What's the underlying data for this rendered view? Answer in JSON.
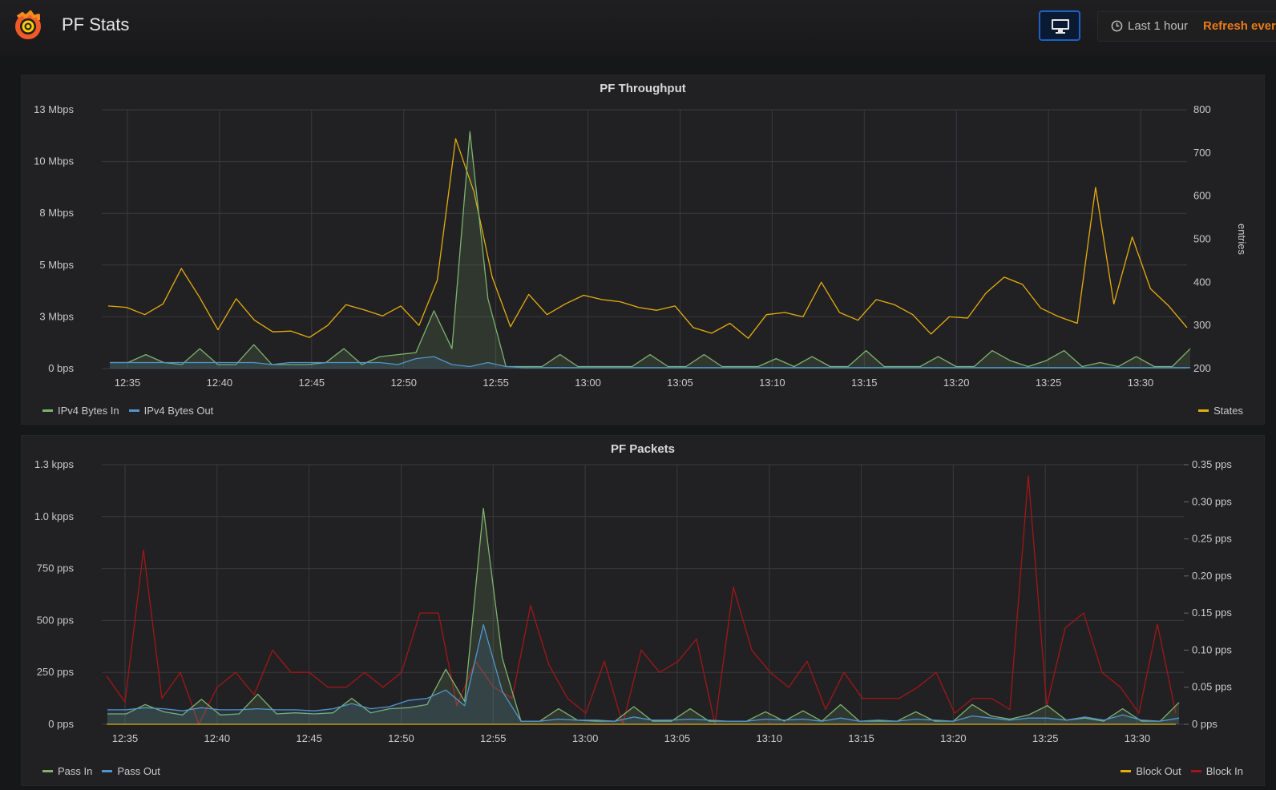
{
  "header": {
    "title": "PF Stats",
    "time_range": "Last 1 hour",
    "refresh_label": "Refresh ever"
  },
  "colors": {
    "green": "#7eb26d",
    "blue": "#5195ce",
    "yellow": "#e5ac0e",
    "red": "#a21616",
    "accent": "#eb7b18"
  },
  "chart_data": [
    {
      "type": "line",
      "title": "PF Throughput",
      "x_ticks": [
        "12:35",
        "12:40",
        "12:45",
        "12:50",
        "12:55",
        "13:00",
        "13:05",
        "13:10",
        "13:15",
        "13:20",
        "13:25",
        "13:30"
      ],
      "y_left": {
        "ticks": [
          "0 bps",
          "3 Mbps",
          "5 Mbps",
          "8 Mbps",
          "10 Mbps",
          "13 Mbps"
        ],
        "range": [
          0,
          13
        ]
      },
      "y_right": {
        "ticks": [
          "200",
          "300",
          "400",
          "500",
          "600",
          "700",
          "800"
        ],
        "range": [
          200,
          800
        ],
        "label": "entries"
      },
      "grid": true,
      "legend_left": [
        {
          "name": "IPv4 Bytes In",
          "color": "#7eb26d"
        },
        {
          "name": "IPv4 Bytes Out",
          "color": "#5195ce"
        }
      ],
      "legend_right": [
        {
          "name": "States",
          "color": "#e5ac0e"
        }
      ],
      "series": [
        {
          "name": "States",
          "axis": "right",
          "color": "#e5ac0e",
          "values": [
            345,
            342,
            325,
            350,
            432,
            365,
            290,
            362,
            312,
            285,
            287,
            272,
            300,
            348,
            336,
            322,
            345,
            300,
            405,
            733,
            610,
            412,
            297,
            372,
            325,
            350,
            370,
            360,
            355,
            342,
            335,
            345,
            295,
            282,
            305,
            270,
            325,
            330,
            320,
            400,
            330,
            312,
            360,
            348,
            325,
            280,
            320,
            317,
            375,
            412,
            395,
            340,
            320,
            305,
            620,
            350,
            505,
            385,
            345,
            295
          ]
        },
        {
          "name": "IPv4 Bytes In",
          "axis": "left",
          "color": "#7eb26d",
          "values": [
            0.3,
            0.3,
            0.7,
            0.3,
            0.2,
            1.0,
            0.2,
            0.2,
            1.2,
            0.2,
            0.2,
            0.2,
            0.3,
            1.0,
            0.2,
            0.6,
            0.7,
            0.8,
            2.9,
            1.0,
            11.9,
            3.5,
            0.1,
            0.1,
            0.1,
            0.7,
            0.1,
            0.1,
            0.1,
            0.1,
            0.7,
            0.1,
            0.1,
            0.7,
            0.1,
            0.1,
            0.1,
            0.5,
            0.1,
            0.6,
            0.1,
            0.1,
            0.9,
            0.1,
            0.1,
            0.1,
            0.6,
            0.1,
            0.1,
            0.9,
            0.4,
            0.1,
            0.4,
            0.9,
            0.1,
            0.3,
            0.1,
            0.6,
            0.1,
            0.1,
            1.0
          ]
        },
        {
          "name": "IPv4 Bytes Out",
          "axis": "left",
          "color": "#5195ce",
          "values": [
            0.3,
            0.3,
            0.3,
            0.3,
            0.3,
            0.3,
            0.3,
            0.3,
            0.3,
            0.2,
            0.3,
            0.3,
            0.3,
            0.3,
            0.3,
            0.3,
            0.2,
            0.5,
            0.6,
            0.2,
            0.1,
            0.3,
            0.1,
            0.05,
            0.05,
            0.05,
            0.05,
            0.05,
            0.05,
            0.05,
            0.05,
            0.05,
            0.05,
            0.05,
            0.05,
            0.05,
            0.05,
            0.05,
            0.05,
            0.05,
            0.05,
            0.05,
            0.05,
            0.05,
            0.05,
            0.05,
            0.05,
            0.05,
            0.05,
            0.05,
            0.05,
            0.05,
            0.05,
            0.05,
            0.05,
            0.05,
            0.05,
            0.05,
            0.05,
            0.05,
            0.05
          ]
        }
      ]
    },
    {
      "type": "line",
      "title": "PF Packets",
      "x_ticks": [
        "12:35",
        "12:40",
        "12:45",
        "12:50",
        "12:55",
        "13:00",
        "13:05",
        "13:10",
        "13:15",
        "13:20",
        "13:25",
        "13:30"
      ],
      "y_left": {
        "ticks": [
          "0 pps",
          "250 pps",
          "500 pps",
          "750 pps",
          "1.0 kpps",
          "1.3 kpps"
        ],
        "range": [
          0,
          1250
        ]
      },
      "y_right": {
        "ticks": [
          "0 pps",
          "0.05 pps",
          "0.10 pps",
          "0.15 pps",
          "0.20 pps",
          "0.25 pps",
          "0.30 pps",
          "0.35 pps"
        ],
        "range": [
          0,
          0.35
        ]
      },
      "grid": true,
      "legend_left": [
        {
          "name": "Pass In",
          "color": "#7eb26d"
        },
        {
          "name": "Pass Out",
          "color": "#5195ce"
        }
      ],
      "legend_right": [
        {
          "name": "Block Out",
          "color": "#e5ac0e"
        },
        {
          "name": "Block In",
          "color": "#a21616"
        }
      ],
      "series": [
        {
          "name": "Block In",
          "axis": "right",
          "color": "#a21616",
          "values": [
            0.065,
            0.03,
            0.235,
            0.035,
            0.07,
            0.0,
            0.05,
            0.07,
            0.04,
            0.1,
            0.07,
            0.07,
            0.05,
            0.05,
            0.07,
            0.05,
            0.07,
            0.15,
            0.15,
            0.025,
            0.085,
            0.05,
            0.035,
            0.16,
            0.08,
            0.035,
            0.015,
            0.085,
            0.0,
            0.1,
            0.07,
            0.085,
            0.115,
            0.0,
            0.185,
            0.1,
            0.07,
            0.05,
            0.085,
            0.02,
            0.07,
            0.035,
            0.035,
            0.035,
            0.05,
            0.07,
            0.015,
            0.035,
            0.035,
            0.02,
            0.335,
            0.025,
            0.13,
            0.15,
            0.07,
            0.05,
            0.015,
            0.135,
            0.015
          ]
        },
        {
          "name": "Pass In",
          "axis": "left",
          "color": "#7eb26d",
          "values": [
            50,
            50,
            95,
            60,
            45,
            120,
            45,
            50,
            145,
            50,
            55,
            50,
            55,
            125,
            55,
            75,
            80,
            95,
            265,
            110,
            1040,
            320,
            15,
            15,
            75,
            20,
            15,
            15,
            85,
            15,
            15,
            75,
            15,
            15,
            15,
            60,
            15,
            65,
            15,
            95,
            15,
            15,
            15,
            60,
            15,
            15,
            95,
            40,
            25,
            45,
            90,
            20,
            30,
            15,
            75,
            15,
            15,
            105
          ]
        },
        {
          "name": "Pass Out",
          "axis": "left",
          "color": "#5195ce",
          "values": [
            70,
            70,
            80,
            75,
            65,
            80,
            70,
            70,
            75,
            70,
            70,
            65,
            75,
            100,
            75,
            85,
            115,
            125,
            165,
            90,
            480,
            160,
            15,
            15,
            25,
            20,
            20,
            15,
            35,
            20,
            20,
            25,
            20,
            15,
            15,
            25,
            20,
            25,
            15,
            30,
            15,
            20,
            15,
            25,
            20,
            15,
            40,
            30,
            20,
            30,
            30,
            20,
            35,
            20,
            45,
            20,
            15,
            30
          ]
        },
        {
          "name": "Block Out",
          "axis": "right",
          "color": "#e5ac0e",
          "values": [
            0,
            0,
            0,
            0,
            0,
            0,
            0,
            0,
            0,
            0,
            0,
            0,
            0,
            0,
            0,
            0,
            0,
            0,
            0,
            0,
            0,
            0,
            0,
            0,
            0,
            0,
            0,
            0,
            0,
            0,
            0,
            0,
            0,
            0,
            0,
            0,
            0,
            0,
            0,
            0,
            0,
            0,
            0,
            0,
            0,
            0,
            0,
            0,
            0,
            0,
            0,
            0,
            0,
            0,
            0,
            0,
            0,
            0,
            0
          ]
        }
      ]
    }
  ]
}
